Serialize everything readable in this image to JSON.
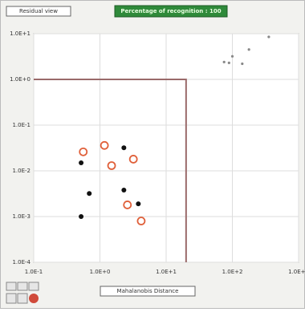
{
  "ui": {
    "view_button": "Residual view",
    "status": "Percentage of recognition : 100",
    "x_button": "Mahalanobis Distance"
  },
  "chart_data": {
    "type": "scatter",
    "xscale": "log",
    "yscale": "log",
    "grid": true,
    "xlim": [
      0.1,
      1000
    ],
    "ylim": [
      0.0001,
      10
    ],
    "xticks": [
      {
        "value": 0.1,
        "label": "1.0E-1"
      },
      {
        "value": 1,
        "label": "1.0E+0"
      },
      {
        "value": 10,
        "label": "1.0E+1"
      },
      {
        "value": 100,
        "label": "1.0E+2"
      },
      {
        "value": 1000,
        "label": "1.0E+3"
      }
    ],
    "yticks": [
      {
        "value": 0.0001,
        "label": "1.0E-4"
      },
      {
        "value": 0.001,
        "label": "1.0E-3"
      },
      {
        "value": 0.01,
        "label": "1.0E-2"
      },
      {
        "value": 0.1,
        "label": "1.0E-1"
      },
      {
        "value": 1,
        "label": "1.0E+0"
      },
      {
        "value": 10,
        "label": "1.0E+1"
      }
    ],
    "threshold_x": 20,
    "threshold_y": 1,
    "threshold_color": "#9a6a6a",
    "series": [
      {
        "color": "#111111",
        "marker": "dot",
        "x": [
          0.52,
          0.69,
          0.52,
          2.3,
          2.3,
          3.8
        ],
        "values": [
          0.015,
          0.0032,
          0.001,
          0.032,
          0.0038,
          0.0019
        ]
      },
      {
        "color": "#e0603a",
        "marker": "ring",
        "x": [
          0.56,
          1.17,
          1.5,
          3.2,
          2.6,
          4.2
        ],
        "values": [
          0.026,
          0.036,
          0.013,
          0.018,
          0.0018,
          0.0008
        ]
      },
      {
        "color": "#888888",
        "marker": "small",
        "x": [
          355,
          178,
          100,
          89,
          75,
          141
        ],
        "values": [
          8.5,
          4.5,
          3.2,
          2.3,
          2.4,
          2.2
        ]
      }
    ]
  }
}
